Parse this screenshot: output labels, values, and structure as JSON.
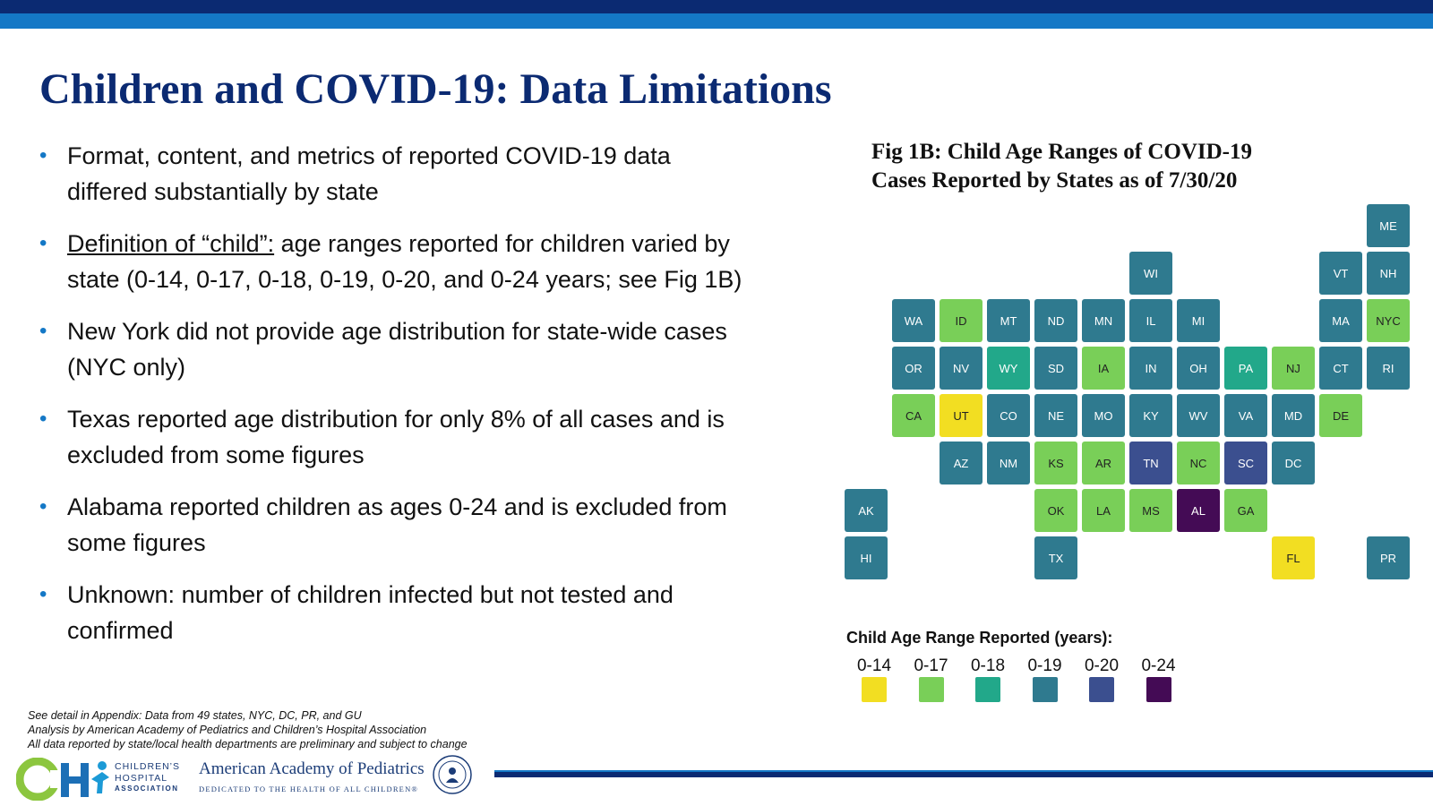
{
  "title": "Children and COVID-19: Data Limitations",
  "bullets": [
    {
      "prefix": "",
      "text": "Format, content, and metrics of reported COVID-19 data differed substantially by state"
    },
    {
      "prefix": "Definition of “child”:",
      "text": " age ranges reported for children varied by state (0-14, 0-17, 0-18, 0-19, 0-20, and 0-24 years; see Fig 1B)"
    },
    {
      "prefix": "",
      "text": "New York did not provide age distribution for state-wide cases (NYC only)"
    },
    {
      "prefix": "",
      "text": "Texas reported age distribution for only 8% of all cases and is excluded from some figures"
    },
    {
      "prefix": "",
      "text": "Alabama reported children as ages 0-24 and is excluded from some figures"
    },
    {
      "prefix": "",
      "text": "Unknown: number of children infected but not tested and confirmed"
    }
  ],
  "footnotes": [
    "See detail in Appendix: Data from 49 states, NYC, DC, PR, and GU",
    "Analysis by American Academy of Pediatrics and Children’s Hospital Association",
    "All data reported by state/local health departments are preliminary and subject to change"
  ],
  "logos": {
    "cha_lines": [
      "CHILDREN’S",
      "HOSPITAL",
      "ASSOCIATION"
    ],
    "aap_name": "American Academy of Pediatrics",
    "aap_tagline": "DEDICATED TO THE HEALTH OF ALL CHILDREN®"
  },
  "figure": {
    "title_line1": "Fig 1B: Child Age Ranges of COVID-19",
    "title_line2": "Cases Reported by States as of 7/30/20"
  },
  "colors": {
    "0-14": "#f2de22",
    "0-17": "#79cf58",
    "0-18": "#22a88a",
    "0-19": "#2f7a8f",
    "0-20": "#3b4f8f",
    "0-24": "#440b55"
  },
  "chart_data": {
    "type": "tile-grid-map",
    "title": "Fig 1B: Child Age Ranges of COVID-19 Cases Reported by States as of 7/30/20",
    "legend_title": "Child Age Range Reported (years):",
    "categories": [
      "0-14",
      "0-17",
      "0-18",
      "0-19",
      "0-20",
      "0-24"
    ],
    "states": [
      {
        "code": "ME",
        "row": 0,
        "col": 11,
        "range": "0-19"
      },
      {
        "code": "WI",
        "row": 1,
        "col": 6,
        "range": "0-19"
      },
      {
        "code": "VT",
        "row": 1,
        "col": 10,
        "range": "0-19"
      },
      {
        "code": "NH",
        "row": 1,
        "col": 11,
        "range": "0-19"
      },
      {
        "code": "WA",
        "row": 2,
        "col": 1,
        "range": "0-19"
      },
      {
        "code": "ID",
        "row": 2,
        "col": 2,
        "range": "0-17"
      },
      {
        "code": "MT",
        "row": 2,
        "col": 3,
        "range": "0-19"
      },
      {
        "code": "ND",
        "row": 2,
        "col": 4,
        "range": "0-19"
      },
      {
        "code": "MN",
        "row": 2,
        "col": 5,
        "range": "0-19"
      },
      {
        "code": "IL",
        "row": 2,
        "col": 6,
        "range": "0-19"
      },
      {
        "code": "MI",
        "row": 2,
        "col": 7,
        "range": "0-19"
      },
      {
        "code": "MA",
        "row": 2,
        "col": 10,
        "range": "0-19"
      },
      {
        "code": "NYC",
        "row": 2,
        "col": 11,
        "range": "0-17"
      },
      {
        "code": "OR",
        "row": 3,
        "col": 1,
        "range": "0-19"
      },
      {
        "code": "NV",
        "row": 3,
        "col": 2,
        "range": "0-19"
      },
      {
        "code": "WY",
        "row": 3,
        "col": 3,
        "range": "0-18"
      },
      {
        "code": "SD",
        "row": 3,
        "col": 4,
        "range": "0-19"
      },
      {
        "code": "IA",
        "row": 3,
        "col": 5,
        "range": "0-17"
      },
      {
        "code": "IN",
        "row": 3,
        "col": 6,
        "range": "0-19"
      },
      {
        "code": "OH",
        "row": 3,
        "col": 7,
        "range": "0-19"
      },
      {
        "code": "PA",
        "row": 3,
        "col": 8,
        "range": "0-18"
      },
      {
        "code": "NJ",
        "row": 3,
        "col": 9,
        "range": "0-17"
      },
      {
        "code": "CT",
        "row": 3,
        "col": 10,
        "range": "0-19"
      },
      {
        "code": "RI",
        "row": 3,
        "col": 11,
        "range": "0-19"
      },
      {
        "code": "CA",
        "row": 4,
        "col": 1,
        "range": "0-17"
      },
      {
        "code": "UT",
        "row": 4,
        "col": 2,
        "range": "0-14"
      },
      {
        "code": "CO",
        "row": 4,
        "col": 3,
        "range": "0-19"
      },
      {
        "code": "NE",
        "row": 4,
        "col": 4,
        "range": "0-19"
      },
      {
        "code": "MO",
        "row": 4,
        "col": 5,
        "range": "0-19"
      },
      {
        "code": "KY",
        "row": 4,
        "col": 6,
        "range": "0-19"
      },
      {
        "code": "WV",
        "row": 4,
        "col": 7,
        "range": "0-19"
      },
      {
        "code": "VA",
        "row": 4,
        "col": 8,
        "range": "0-19"
      },
      {
        "code": "MD",
        "row": 4,
        "col": 9,
        "range": "0-19"
      },
      {
        "code": "DE",
        "row": 4,
        "col": 10,
        "range": "0-17"
      },
      {
        "code": "AZ",
        "row": 5,
        "col": 2,
        "range": "0-19"
      },
      {
        "code": "NM",
        "row": 5,
        "col": 3,
        "range": "0-19"
      },
      {
        "code": "KS",
        "row": 5,
        "col": 4,
        "range": "0-17"
      },
      {
        "code": "AR",
        "row": 5,
        "col": 5,
        "range": "0-17"
      },
      {
        "code": "TN",
        "row": 5,
        "col": 6,
        "range": "0-20"
      },
      {
        "code": "NC",
        "row": 5,
        "col": 7,
        "range": "0-17"
      },
      {
        "code": "SC",
        "row": 5,
        "col": 8,
        "range": "0-20"
      },
      {
        "code": "DC",
        "row": 5,
        "col": 9,
        "range": "0-19"
      },
      {
        "code": "AK",
        "row": 6,
        "col": 0,
        "range": "0-19"
      },
      {
        "code": "OK",
        "row": 6,
        "col": 4,
        "range": "0-17"
      },
      {
        "code": "LA",
        "row": 6,
        "col": 5,
        "range": "0-17"
      },
      {
        "code": "MS",
        "row": 6,
        "col": 6,
        "range": "0-17"
      },
      {
        "code": "AL",
        "row": 6,
        "col": 7,
        "range": "0-24"
      },
      {
        "code": "GA",
        "row": 6,
        "col": 8,
        "range": "0-17"
      },
      {
        "code": "HI",
        "row": 7,
        "col": 0,
        "range": "0-19"
      },
      {
        "code": "TX",
        "row": 7,
        "col": 4,
        "range": "0-19"
      },
      {
        "code": "FL",
        "row": 7,
        "col": 9,
        "range": "0-14"
      },
      {
        "code": "PR",
        "row": 7,
        "col": 11,
        "range": "0-19"
      }
    ]
  }
}
